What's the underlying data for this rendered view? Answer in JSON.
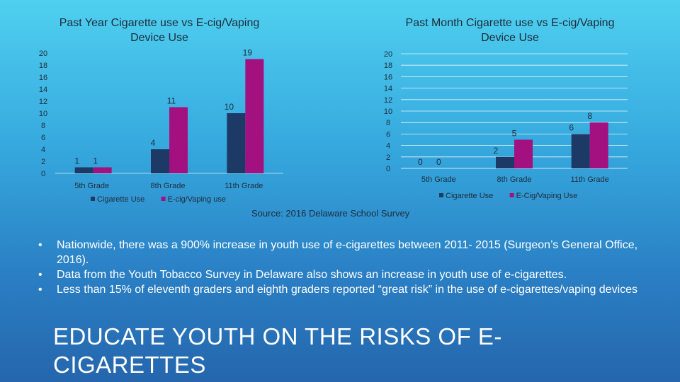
{
  "chart_data": [
    {
      "type": "bar",
      "title": "Past Year Cigarette use vs E-cig/Vaping Device Use",
      "categories": [
        "5th Grade",
        "8th Grade",
        "11th Grade"
      ],
      "series": [
        {
          "name": "Cigarette Use",
          "color": "#1d3a66",
          "values": [
            1,
            4,
            10
          ]
        },
        {
          "name": "E-cig/Vaping use",
          "color": "#a3107f",
          "values": [
            1,
            11,
            19
          ]
        }
      ],
      "ylim": [
        0,
        20
      ],
      "yticks": [
        0,
        2,
        4,
        6,
        8,
        10,
        12,
        14,
        16,
        18,
        20
      ],
      "grid": false,
      "legend": "bottom"
    },
    {
      "type": "bar",
      "title": "Past Month Cigarette use vs E-cig/Vaping Device Use",
      "categories": [
        "5th Grade",
        "8th Grade",
        "11th Grade"
      ],
      "series": [
        {
          "name": "Cigarette Use",
          "color": "#1d3a66",
          "values": [
            0,
            2,
            6
          ]
        },
        {
          "name": "E-Cig/Vaping Use",
          "color": "#a3107f",
          "values": [
            0,
            5,
            8
          ]
        }
      ],
      "ylim": [
        0,
        20
      ],
      "yticks": [
        0,
        2,
        4,
        6,
        8,
        10,
        12,
        14,
        16,
        18,
        20
      ],
      "grid": true,
      "legend": "bottom"
    }
  ],
  "source": "Source: 2016 Delaware School Survey",
  "bullets": [
    {
      "marker": "•",
      "text": "Nationwide, there was a 900% increase in youth use of e-cigarettes between 2011- 2015 (Surgeon’s General Office, 2016)."
    },
    {
      "marker": "•",
      "text": "Data from the Youth Tobacco Survey in Delaware also shows an increase in youth use of e-cigarettes."
    },
    {
      "marker": "•",
      "text": "Less than 15% of eleventh graders and eighth graders reported “great risk” in the use of e-cigarettes/vaping devices"
    }
  ],
  "headline": "EDUCATE YOUTH ON THE RISKS OF E-CIGARETTES"
}
